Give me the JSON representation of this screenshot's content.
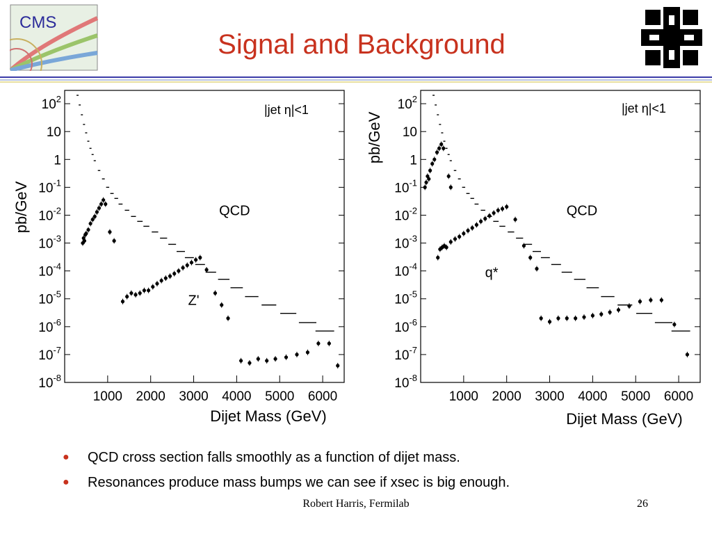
{
  "slide": {
    "title": "Signal and Background",
    "bullets": [
      "QCD cross section falls smoothly as a function of dijet mass.",
      "Resonances produce mass bumps we can see if xsec is big enough."
    ],
    "footer_author": "Robert Harris, Fermilab",
    "page_number": "26",
    "cms_logo_text": "CMS",
    "bullet_glyph": "●",
    "colors": {
      "title": "#c8321e",
      "bullet": "#c8321e",
      "rule": "#3a3aa8"
    }
  },
  "chart_data": [
    {
      "type": "scatter",
      "xlabel": "Dijet Mass (GeV)",
      "ylabel": "pb/GeV",
      "log_y": true,
      "ylim": [
        1e-08,
        300
      ],
      "xlim": [
        0,
        6500
      ],
      "xticks": [
        "1000",
        "2000",
        "3000",
        "4000",
        "5000",
        "6000"
      ],
      "yticks": [
        {
          "base": "10",
          "exp": "2"
        },
        {
          "base": "10",
          "exp": ""
        },
        {
          "base": "1",
          "exp": ""
        },
        {
          "base": "10",
          "exp": "-1"
        },
        {
          "base": "10",
          "exp": "-2"
        },
        {
          "base": "10",
          "exp": "-3"
        },
        {
          "base": "10",
          "exp": "-4"
        },
        {
          "base": "10",
          "exp": "-5"
        },
        {
          "base": "10",
          "exp": "-6"
        },
        {
          "base": "10",
          "exp": "-7"
        },
        {
          "base": "10",
          "exp": "-8"
        }
      ],
      "cut_label": "|jet η|<1",
      "annotations": [
        {
          "text": "QCD",
          "x": 3950,
          "y": 0.01
        },
        {
          "text": "Z'",
          "x": 3000,
          "y": 6e-06
        }
      ],
      "series": [
        {
          "role": "qcd-background",
          "points": [
            [
              300,
              200
            ],
            [
              350,
              90
            ],
            [
              400,
              40
            ],
            [
              450,
              18
            ],
            [
              500,
              9
            ],
            [
              550,
              4.5
            ],
            [
              600,
              2.5
            ],
            [
              650,
              1.5
            ],
            [
              700,
              0.9
            ],
            [
              800,
              0.4
            ],
            [
              900,
              0.2
            ],
            [
              1000,
              0.1
            ],
            [
              1100,
              0.06
            ],
            [
              1200,
              0.04
            ],
            [
              1300,
              0.025
            ],
            [
              1450,
              0.015
            ],
            [
              1600,
              0.009
            ],
            [
              1750,
              0.006
            ],
            [
              1900,
              0.004
            ],
            [
              2100,
              0.0025
            ],
            [
              2300,
              0.0015
            ],
            [
              2500,
              0.0009
            ],
            [
              2700,
              0.0005
            ],
            [
              2900,
              0.0003
            ],
            [
              3150,
              0.00017
            ],
            [
              3400,
              9e-05
            ],
            [
              3700,
              5e-05
            ],
            [
              4000,
              2.5e-05
            ],
            [
              4350,
              1.2e-05
            ],
            [
              4750,
              6e-06
            ],
            [
              5200,
              3e-06
            ],
            [
              5650,
              1.4e-06
            ],
            [
              6050,
              7e-07
            ]
          ]
        },
        {
          "role": "signal",
          "points": [
            [
              420,
              0.001
            ],
            [
              440,
              0.0015
            ],
            [
              460,
              0.0012
            ],
            [
              480,
              0.002
            ],
            [
              500,
              0.0022
            ],
            [
              550,
              0.003
            ],
            [
              600,
              0.005
            ],
            [
              650,
              0.007
            ],
            [
              700,
              0.009
            ],
            [
              750,
              0.013
            ],
            [
              800,
              0.018
            ],
            [
              850,
              0.025
            ],
            [
              900,
              0.035
            ],
            [
              950,
              0.025
            ],
            [
              1050,
              0.0025
            ],
            [
              1150,
              0.0012
            ],
            [
              1350,
              8e-06
            ],
            [
              1450,
              1.2e-05
            ],
            [
              1550,
              1.6e-05
            ],
            [
              1650,
              1.4e-05
            ],
            [
              1750,
              1.6e-05
            ],
            [
              1850,
              2e-05
            ],
            [
              1950,
              2e-05
            ],
            [
              2050,
              2.7e-05
            ],
            [
              2150,
              3.5e-05
            ],
            [
              2250,
              4.5e-05
            ],
            [
              2350,
              5.5e-05
            ],
            [
              2450,
              6.5e-05
            ],
            [
              2550,
              8e-05
            ],
            [
              2650,
              0.0001
            ],
            [
              2750,
              0.00013
            ],
            [
              2850,
              0.00016
            ],
            [
              2950,
              0.0002
            ],
            [
              3050,
              0.00025
            ],
            [
              3150,
              0.0003
            ],
            [
              3300,
              0.00011
            ],
            [
              3500,
              1.6e-05
            ],
            [
              3650,
              6e-06
            ],
            [
              3800,
              2e-06
            ],
            [
              4100,
              6e-08
            ],
            [
              4300,
              5e-08
            ],
            [
              4500,
              7e-08
            ],
            [
              4700,
              6e-08
            ],
            [
              4900,
              7e-08
            ],
            [
              5150,
              8e-08
            ],
            [
              5400,
              1e-07
            ],
            [
              5650,
              1.2e-07
            ],
            [
              5900,
              2.5e-07
            ],
            [
              6150,
              2.5e-07
            ],
            [
              6350,
              4e-08
            ]
          ]
        }
      ]
    },
    {
      "type": "scatter",
      "xlabel": "Dijet Mass (GeV)",
      "ylabel": "pb/GeV",
      "log_y": true,
      "ylim": [
        1e-08,
        300
      ],
      "xlim": [
        0,
        6500
      ],
      "xticks": [
        "1000",
        "2000",
        "3000",
        "4000",
        "5000",
        "6000"
      ],
      "yticks": [
        {
          "base": "10",
          "exp": "2"
        },
        {
          "base": "10",
          "exp": ""
        },
        {
          "base": "1",
          "exp": ""
        },
        {
          "base": "10",
          "exp": "-1"
        },
        {
          "base": "10",
          "exp": "-2"
        },
        {
          "base": "10",
          "exp": "-3"
        },
        {
          "base": "10",
          "exp": "-4"
        },
        {
          "base": "10",
          "exp": "-5"
        },
        {
          "base": "10",
          "exp": "-6"
        },
        {
          "base": "10",
          "exp": "-7"
        },
        {
          "base": "10",
          "exp": "-8"
        }
      ],
      "cut_label": "|jet η|<1",
      "annotations": [
        {
          "text": "QCD",
          "x": 3750,
          "y": 0.01
        },
        {
          "text": "q*",
          "x": 1650,
          "y": 6e-05
        }
      ],
      "series": [
        {
          "role": "qcd-background",
          "points": [
            [
              300,
              200
            ],
            [
              350,
              90
            ],
            [
              400,
              40
            ],
            [
              450,
              18
            ],
            [
              500,
              9
            ],
            [
              550,
              4.5
            ],
            [
              600,
              2.5
            ],
            [
              650,
              1.5
            ],
            [
              700,
              0.9
            ],
            [
              800,
              0.4
            ],
            [
              900,
              0.2
            ],
            [
              1000,
              0.1
            ],
            [
              1100,
              0.06
            ],
            [
              1200,
              0.04
            ],
            [
              1300,
              0.025
            ],
            [
              1450,
              0.015
            ],
            [
              1600,
              0.009
            ],
            [
              1750,
              0.006
            ],
            [
              1900,
              0.004
            ],
            [
              2100,
              0.0025
            ],
            [
              2300,
              0.0015
            ],
            [
              2500,
              0.0009
            ],
            [
              2700,
              0.0005
            ],
            [
              2900,
              0.0003
            ],
            [
              3150,
              0.00017
            ],
            [
              3400,
              9e-05
            ],
            [
              3700,
              5e-05
            ],
            [
              4000,
              2.5e-05
            ],
            [
              4350,
              1.2e-05
            ],
            [
              4750,
              6e-06
            ],
            [
              5200,
              3e-06
            ],
            [
              5650,
              1.4e-06
            ],
            [
              6050,
              7e-07
            ]
          ]
        },
        {
          "role": "signal",
          "points": [
            [
              100,
              0.1
            ],
            [
              130,
              0.15
            ],
            [
              160,
              0.25
            ],
            [
              190,
              0.2
            ],
            [
              220,
              0.4
            ],
            [
              270,
              0.7
            ],
            [
              320,
              1
            ],
            [
              380,
              1.8
            ],
            [
              430,
              2.5
            ],
            [
              480,
              3.5
            ],
            [
              530,
              2.5
            ],
            [
              650,
              0.25
            ],
            [
              700,
              0.1
            ],
            [
              400,
              0.0003
            ],
            [
              450,
              0.0006
            ],
            [
              500,
              0.0007
            ],
            [
              550,
              0.0008
            ],
            [
              600,
              0.0007
            ],
            [
              700,
              0.0011
            ],
            [
              800,
              0.0014
            ],
            [
              900,
              0.0017
            ],
            [
              1000,
              0.0022
            ],
            [
              1100,
              0.0028
            ],
            [
              1200,
              0.0035
            ],
            [
              1300,
              0.0045
            ],
            [
              1400,
              0.006
            ],
            [
              1500,
              0.0075
            ],
            [
              1600,
              0.0095
            ],
            [
              1700,
              0.012
            ],
            [
              1800,
              0.015
            ],
            [
              1900,
              0.017
            ],
            [
              2000,
              0.02
            ],
            [
              2200,
              0.007
            ],
            [
              2400,
              0.0008
            ],
            [
              2550,
              0.0003
            ],
            [
              2700,
              0.00012
            ],
            [
              2800,
              2e-06
            ],
            [
              3000,
              1.5e-06
            ],
            [
              3200,
              2e-06
            ],
            [
              3400,
              2e-06
            ],
            [
              3600,
              2e-06
            ],
            [
              3800,
              2.2e-06
            ],
            [
              4000,
              2.5e-06
            ],
            [
              4200,
              2.8e-06
            ],
            [
              4400,
              3.3e-06
            ],
            [
              4600,
              4e-06
            ],
            [
              4850,
              5.5e-06
            ],
            [
              5100,
              8e-06
            ],
            [
              5350,
              9e-06
            ],
            [
              5600,
              9e-06
            ],
            [
              5900,
              1.2e-06
            ],
            [
              6200,
              1e-07
            ]
          ]
        }
      ]
    }
  ]
}
